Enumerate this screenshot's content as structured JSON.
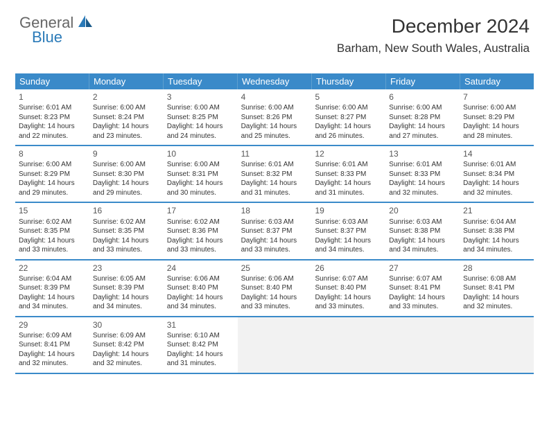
{
  "logo": {
    "general": "General",
    "blue": "Blue"
  },
  "header": {
    "title": "December 2024",
    "location": "Barham, New South Wales, Australia"
  },
  "colors": {
    "header_bg": "#3a8ac9",
    "header_text": "#ffffff",
    "row_border": "#3a8ac9",
    "empty_bg": "#f2f2f2",
    "logo_gray": "#666666",
    "logo_blue": "#2a7ab8"
  },
  "calendar": {
    "type": "table",
    "day_headers": [
      "Sunday",
      "Monday",
      "Tuesday",
      "Wednesday",
      "Thursday",
      "Friday",
      "Saturday"
    ],
    "weeks": [
      [
        {
          "n": "1",
          "sr": "6:01 AM",
          "ss": "8:23 PM",
          "dl": "14 hours and 22 minutes."
        },
        {
          "n": "2",
          "sr": "6:00 AM",
          "ss": "8:24 PM",
          "dl": "14 hours and 23 minutes."
        },
        {
          "n": "3",
          "sr": "6:00 AM",
          "ss": "8:25 PM",
          "dl": "14 hours and 24 minutes."
        },
        {
          "n": "4",
          "sr": "6:00 AM",
          "ss": "8:26 PM",
          "dl": "14 hours and 25 minutes."
        },
        {
          "n": "5",
          "sr": "6:00 AM",
          "ss": "8:27 PM",
          "dl": "14 hours and 26 minutes."
        },
        {
          "n": "6",
          "sr": "6:00 AM",
          "ss": "8:28 PM",
          "dl": "14 hours and 27 minutes."
        },
        {
          "n": "7",
          "sr": "6:00 AM",
          "ss": "8:29 PM",
          "dl": "14 hours and 28 minutes."
        }
      ],
      [
        {
          "n": "8",
          "sr": "6:00 AM",
          "ss": "8:29 PM",
          "dl": "14 hours and 29 minutes."
        },
        {
          "n": "9",
          "sr": "6:00 AM",
          "ss": "8:30 PM",
          "dl": "14 hours and 29 minutes."
        },
        {
          "n": "10",
          "sr": "6:00 AM",
          "ss": "8:31 PM",
          "dl": "14 hours and 30 minutes."
        },
        {
          "n": "11",
          "sr": "6:01 AM",
          "ss": "8:32 PM",
          "dl": "14 hours and 31 minutes."
        },
        {
          "n": "12",
          "sr": "6:01 AM",
          "ss": "8:33 PM",
          "dl": "14 hours and 31 minutes."
        },
        {
          "n": "13",
          "sr": "6:01 AM",
          "ss": "8:33 PM",
          "dl": "14 hours and 32 minutes."
        },
        {
          "n": "14",
          "sr": "6:01 AM",
          "ss": "8:34 PM",
          "dl": "14 hours and 32 minutes."
        }
      ],
      [
        {
          "n": "15",
          "sr": "6:02 AM",
          "ss": "8:35 PM",
          "dl": "14 hours and 33 minutes."
        },
        {
          "n": "16",
          "sr": "6:02 AM",
          "ss": "8:35 PM",
          "dl": "14 hours and 33 minutes."
        },
        {
          "n": "17",
          "sr": "6:02 AM",
          "ss": "8:36 PM",
          "dl": "14 hours and 33 minutes."
        },
        {
          "n": "18",
          "sr": "6:03 AM",
          "ss": "8:37 PM",
          "dl": "14 hours and 33 minutes."
        },
        {
          "n": "19",
          "sr": "6:03 AM",
          "ss": "8:37 PM",
          "dl": "14 hours and 34 minutes."
        },
        {
          "n": "20",
          "sr": "6:03 AM",
          "ss": "8:38 PM",
          "dl": "14 hours and 34 minutes."
        },
        {
          "n": "21",
          "sr": "6:04 AM",
          "ss": "8:38 PM",
          "dl": "14 hours and 34 minutes."
        }
      ],
      [
        {
          "n": "22",
          "sr": "6:04 AM",
          "ss": "8:39 PM",
          "dl": "14 hours and 34 minutes."
        },
        {
          "n": "23",
          "sr": "6:05 AM",
          "ss": "8:39 PM",
          "dl": "14 hours and 34 minutes."
        },
        {
          "n": "24",
          "sr": "6:06 AM",
          "ss": "8:40 PM",
          "dl": "14 hours and 34 minutes."
        },
        {
          "n": "25",
          "sr": "6:06 AM",
          "ss": "8:40 PM",
          "dl": "14 hours and 33 minutes."
        },
        {
          "n": "26",
          "sr": "6:07 AM",
          "ss": "8:40 PM",
          "dl": "14 hours and 33 minutes."
        },
        {
          "n": "27",
          "sr": "6:07 AM",
          "ss": "8:41 PM",
          "dl": "14 hours and 33 minutes."
        },
        {
          "n": "28",
          "sr": "6:08 AM",
          "ss": "8:41 PM",
          "dl": "14 hours and 32 minutes."
        }
      ],
      [
        {
          "n": "29",
          "sr": "6:09 AM",
          "ss": "8:41 PM",
          "dl": "14 hours and 32 minutes."
        },
        {
          "n": "30",
          "sr": "6:09 AM",
          "ss": "8:42 PM",
          "dl": "14 hours and 32 minutes."
        },
        {
          "n": "31",
          "sr": "6:10 AM",
          "ss": "8:42 PM",
          "dl": "14 hours and 31 minutes."
        },
        null,
        null,
        null,
        null
      ]
    ],
    "labels": {
      "sunrise": "Sunrise:",
      "sunset": "Sunset:",
      "daylight": "Daylight:"
    }
  }
}
